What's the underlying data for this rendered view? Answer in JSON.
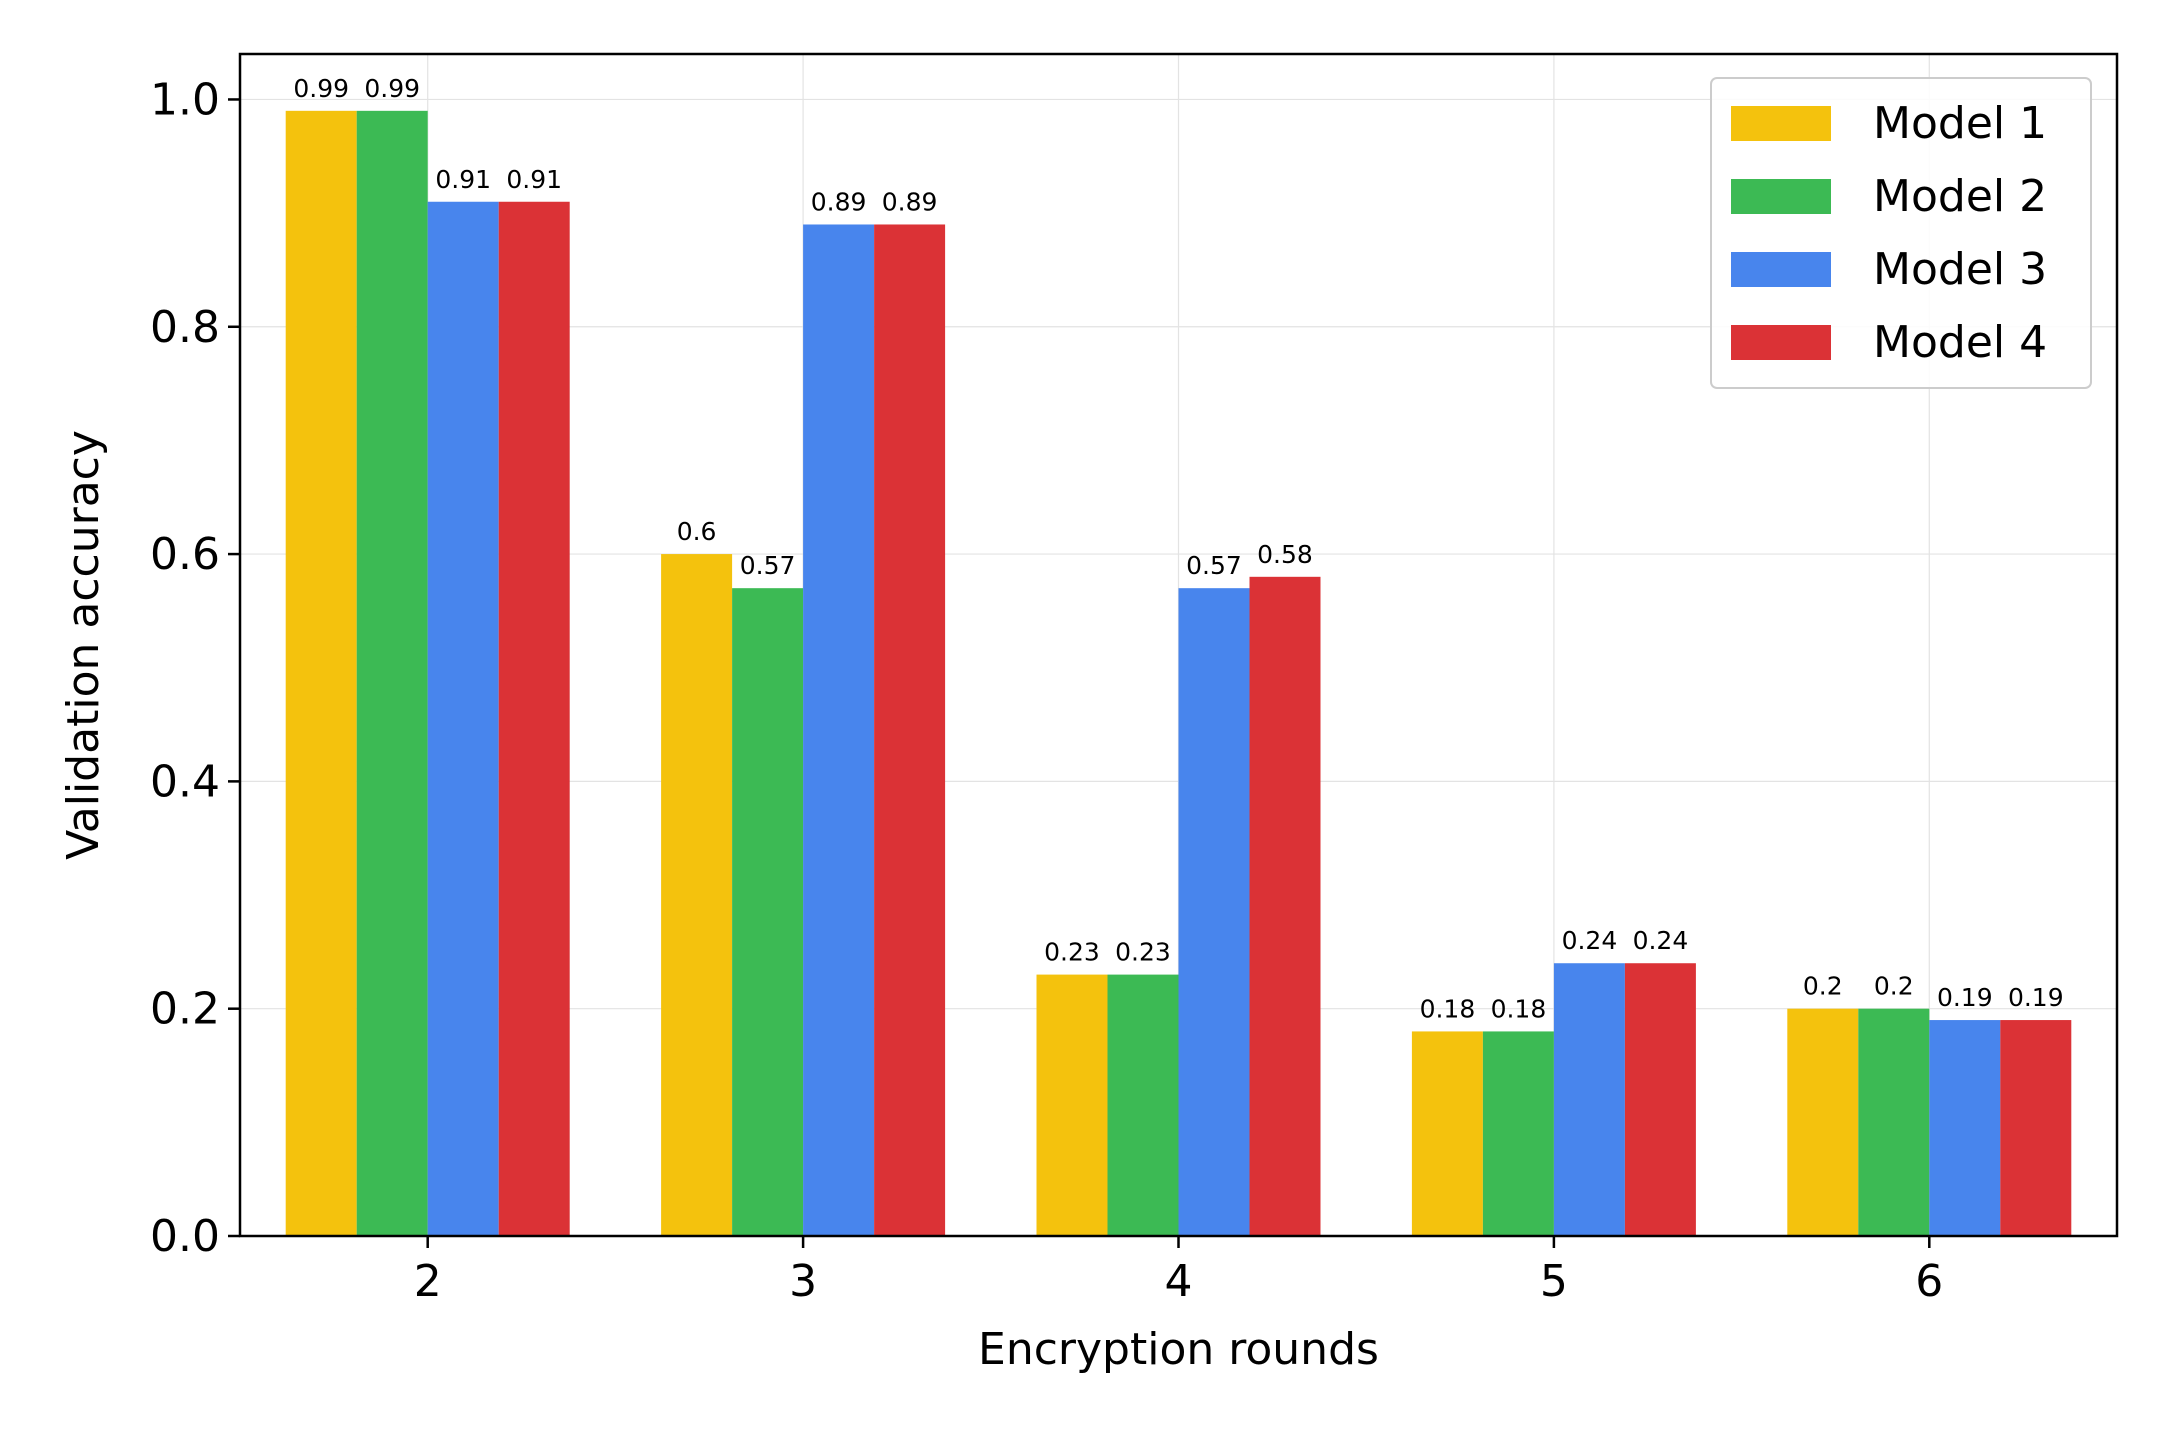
{
  "chart_data": {
    "type": "bar",
    "categories": [
      "2",
      "3",
      "4",
      "5",
      "6"
    ],
    "series": [
      {
        "name": "Model 1",
        "color": "#F4C20D",
        "values": [
          0.99,
          0.6,
          0.23,
          0.18,
          0.2
        ],
        "labels": [
          "0.99",
          "0.6",
          "0.23",
          "0.18",
          "0.2"
        ]
      },
      {
        "name": "Model 2",
        "color": "#3CBA54",
        "values": [
          0.99,
          0.57,
          0.23,
          0.18,
          0.2
        ],
        "labels": [
          "0.99",
          "0.57",
          "0.23",
          "0.18",
          "0.2"
        ]
      },
      {
        "name": "Model 3",
        "color": "#4885ED",
        "values": [
          0.91,
          0.89,
          0.57,
          0.24,
          0.19
        ],
        "labels": [
          "0.91",
          "0.89",
          "0.57",
          "0.24",
          "0.19"
        ]
      },
      {
        "name": "Model 4",
        "color": "#DB3236",
        "values": [
          0.91,
          0.89,
          0.58,
          0.24,
          0.19
        ],
        "labels": [
          "0.91",
          "0.89",
          "0.58",
          "0.24",
          "0.19"
        ]
      }
    ],
    "xlabel": "Encryption rounds",
    "ylabel": "Validation accuracy",
    "ylim": [
      0,
      1.04
    ],
    "yticks": [
      0.0,
      0.2,
      0.4,
      0.6,
      0.8,
      1.0
    ],
    "ytick_labels": [
      "0.0",
      "0.2",
      "0.4",
      "0.6",
      "0.8",
      "1.0"
    ],
    "grid": true,
    "legend_position": "top-right"
  }
}
